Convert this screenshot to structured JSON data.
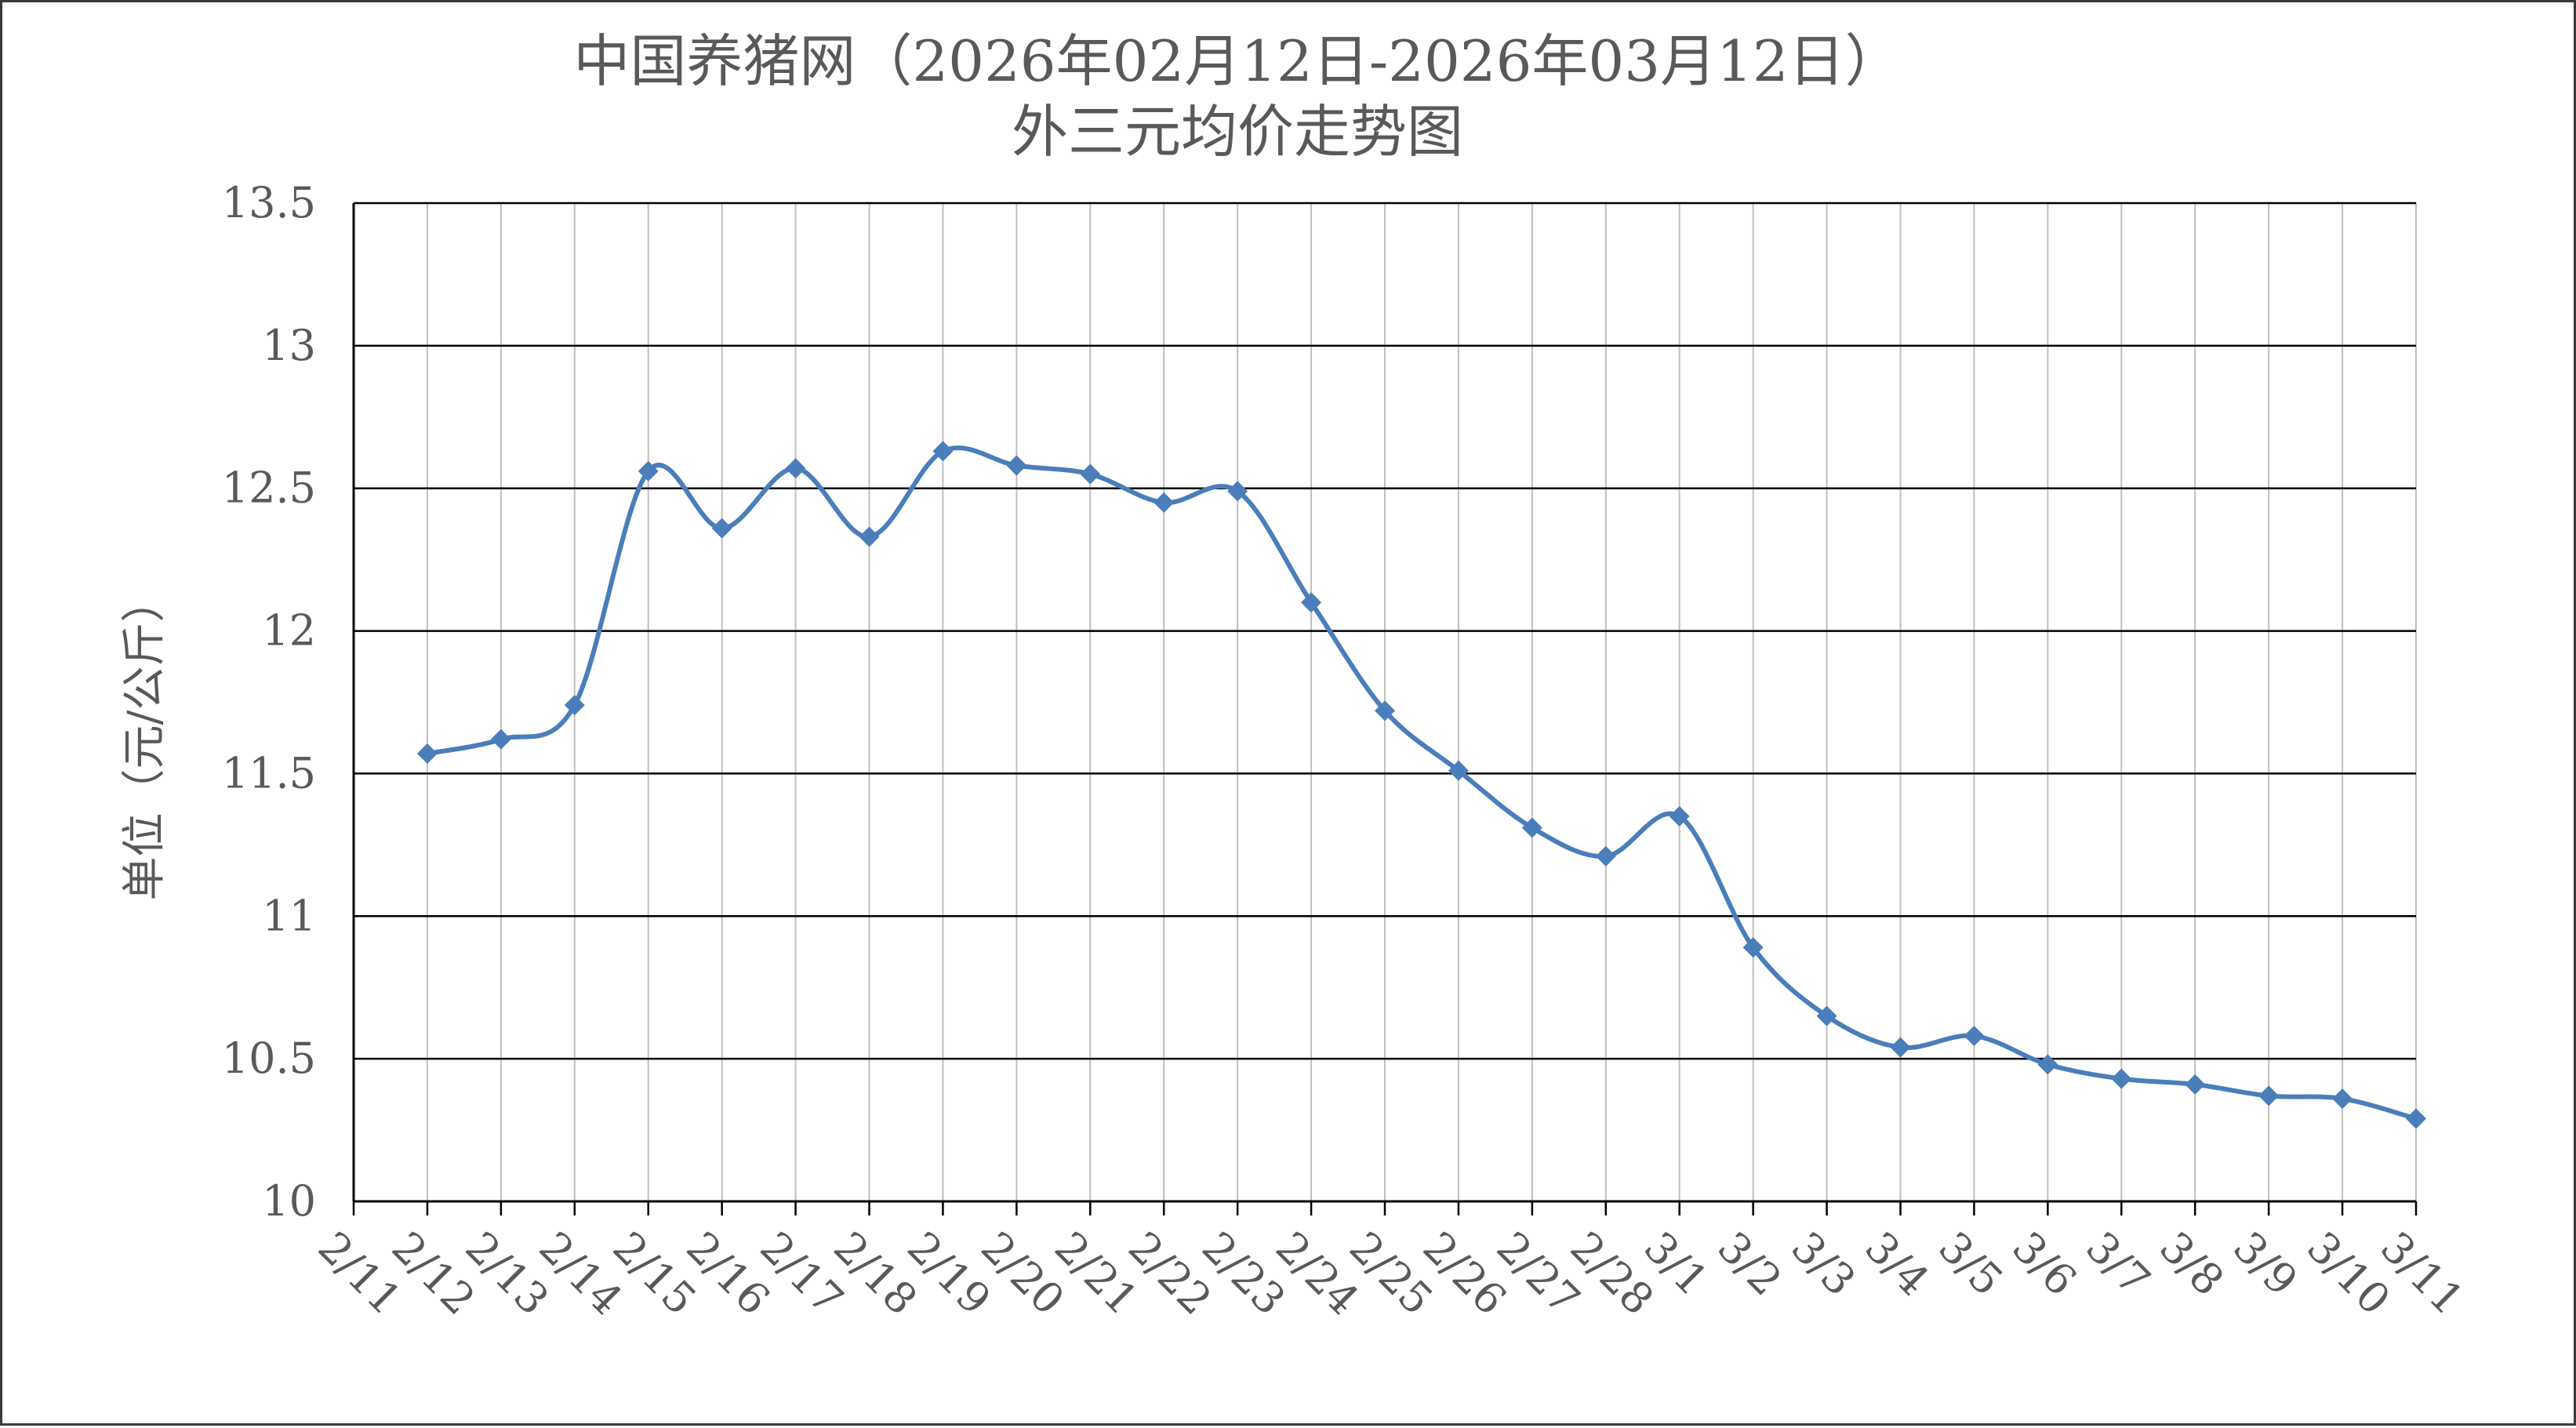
{
  "chart_data": {
    "type": "line",
    "title": "中国养猪网（2026年02月12日-2026年03月12日）",
    "subtitle": "外三元均价走势图",
    "xlabel": "",
    "ylabel": "单位（元/公斤）",
    "ylim": [
      10,
      13.5
    ],
    "y_ticks": [
      "10",
      "10.5",
      "11",
      "11.5",
      "12",
      "12.5",
      "13",
      "13.5"
    ],
    "grid": true,
    "legend": "none",
    "categories": [
      "2/11",
      "2/12",
      "2/13",
      "2/14",
      "2/15",
      "2/16",
      "2/17",
      "2/18",
      "2/19",
      "2/20",
      "2/21",
      "2/22",
      "2/23",
      "2/24",
      "2/25",
      "2/26",
      "2/27",
      "2/28",
      "3/1",
      "3/2",
      "3/3",
      "3/4",
      "3/5",
      "3/6",
      "3/7",
      "3/8",
      "3/9",
      "3/10",
      "3/11"
    ],
    "series": [
      {
        "color": "#4a7ebb",
        "values": [
          null,
          11.57,
          11.62,
          11.74,
          12.56,
          12.36,
          12.57,
          12.33,
          12.63,
          12.58,
          12.55,
          12.45,
          12.49,
          12.1,
          11.72,
          11.51,
          11.31,
          11.21,
          11.35,
          10.89,
          10.65,
          10.54,
          10.58,
          10.48,
          10.43,
          10.41,
          10.37,
          10.36,
          10.29
        ]
      }
    ]
  }
}
